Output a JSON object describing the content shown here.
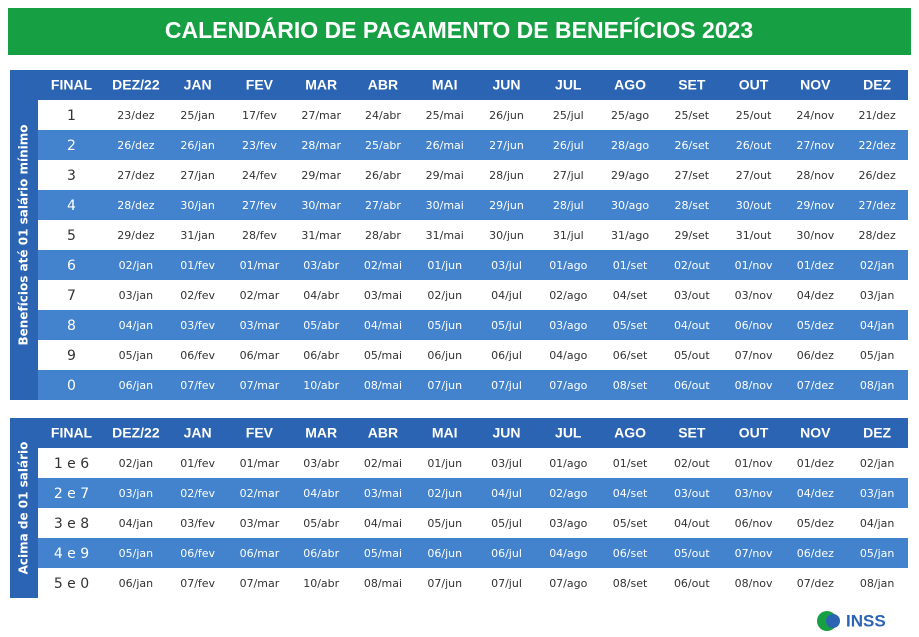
{
  "title": "CALENDÁRIO DE PAGAMENTO DE BENEFÍCIOS 2023",
  "tables": [
    {
      "side_label": "Benefícios até 01 salário mínimo",
      "header": [
        "FINAL",
        "DEZ/22",
        "JAN",
        "FEV",
        "MAR",
        "ABR",
        "MAI",
        "JUN",
        "JUL",
        "AGO",
        "SET",
        "OUT",
        "NOV",
        "DEZ"
      ],
      "rows": [
        [
          "1",
          "23/dez",
          "25/jan",
          "17/fev",
          "27/mar",
          "24/abr",
          "25/mai",
          "26/jun",
          "25/jul",
          "25/ago",
          "25/set",
          "25/out",
          "24/nov",
          "21/dez"
        ],
        [
          "2",
          "26/dez",
          "26/jan",
          "23/fev",
          "28/mar",
          "25/abr",
          "26/mai",
          "27/jun",
          "26/jul",
          "28/ago",
          "26/set",
          "26/out",
          "27/nov",
          "22/dez"
        ],
        [
          "3",
          "27/dez",
          "27/jan",
          "24/fev",
          "29/mar",
          "26/abr",
          "29/mai",
          "28/jun",
          "27/jul",
          "29/ago",
          "27/set",
          "27/out",
          "28/nov",
          "26/dez"
        ],
        [
          "4",
          "28/dez",
          "30/jan",
          "27/fev",
          "30/mar",
          "27/abr",
          "30/mai",
          "29/jun",
          "28/jul",
          "30/ago",
          "28/set",
          "30/out",
          "29/nov",
          "27/dez"
        ],
        [
          "5",
          "29/dez",
          "31/jan",
          "28/fev",
          "31/mar",
          "28/abr",
          "31/mai",
          "30/jun",
          "31/jul",
          "31/ago",
          "29/set",
          "31/out",
          "30/nov",
          "28/dez"
        ],
        [
          "6",
          "02/jan",
          "01/fev",
          "01/mar",
          "03/abr",
          "02/mai",
          "01/jun",
          "03/jul",
          "01/ago",
          "01/set",
          "02/out",
          "01/nov",
          "01/dez",
          "02/jan"
        ],
        [
          "7",
          "03/jan",
          "02/fev",
          "02/mar",
          "04/abr",
          "03/mai",
          "02/jun",
          "04/jul",
          "02/ago",
          "04/set",
          "03/out",
          "03/nov",
          "04/dez",
          "03/jan"
        ],
        [
          "8",
          "04/jan",
          "03/fev",
          "03/mar",
          "05/abr",
          "04/mai",
          "05/jun",
          "05/jul",
          "03/ago",
          "05/set",
          "04/out",
          "06/nov",
          "05/dez",
          "04/jan"
        ],
        [
          "9",
          "05/jan",
          "06/fev",
          "06/mar",
          "06/abr",
          "05/mai",
          "06/jun",
          "06/jul",
          "04/ago",
          "06/set",
          "05/out",
          "07/nov",
          "06/dez",
          "05/jan"
        ],
        [
          "0",
          "06/jan",
          "07/fev",
          "07/mar",
          "10/abr",
          "08/mai",
          "07/jun",
          "07/jul",
          "07/ago",
          "08/set",
          "06/out",
          "08/nov",
          "07/dez",
          "08/jan"
        ]
      ]
    },
    {
      "side_label": "Acima de 01 salário",
      "header": [
        "FINAL",
        "DEZ/22",
        "JAN",
        "FEV",
        "MAR",
        "ABR",
        "MAI",
        "JUN",
        "JUL",
        "AGO",
        "SET",
        "OUT",
        "NOV",
        "DEZ"
      ],
      "rows": [
        [
          "1 e 6",
          "02/jan",
          "01/fev",
          "01/mar",
          "03/abr",
          "02/mai",
          "01/jun",
          "03/jul",
          "01/ago",
          "01/set",
          "02/out",
          "01/nov",
          "01/dez",
          "02/jan"
        ],
        [
          "2 e 7",
          "03/jan",
          "02/fev",
          "02/mar",
          "04/abr",
          "03/mai",
          "02/jun",
          "04/jul",
          "02/ago",
          "04/set",
          "03/out",
          "03/nov",
          "04/dez",
          "03/jan"
        ],
        [
          "3 e 8",
          "04/jan",
          "03/fev",
          "03/mar",
          "05/abr",
          "04/mai",
          "05/jun",
          "05/jul",
          "03/ago",
          "05/set",
          "04/out",
          "06/nov",
          "05/dez",
          "04/jan"
        ],
        [
          "4 e 9",
          "05/jan",
          "06/fev",
          "06/mar",
          "06/abr",
          "05/mai",
          "06/jun",
          "06/jul",
          "04/ago",
          "06/set",
          "05/out",
          "07/nov",
          "06/dez",
          "05/jan"
        ],
        [
          "5 e 0",
          "06/jan",
          "07/fev",
          "07/mar",
          "10/abr",
          "08/mai",
          "07/jun",
          "07/jul",
          "07/ago",
          "08/set",
          "06/out",
          "08/nov",
          "07/dez",
          "08/jan"
        ]
      ]
    }
  ],
  "logo": "INSS"
}
